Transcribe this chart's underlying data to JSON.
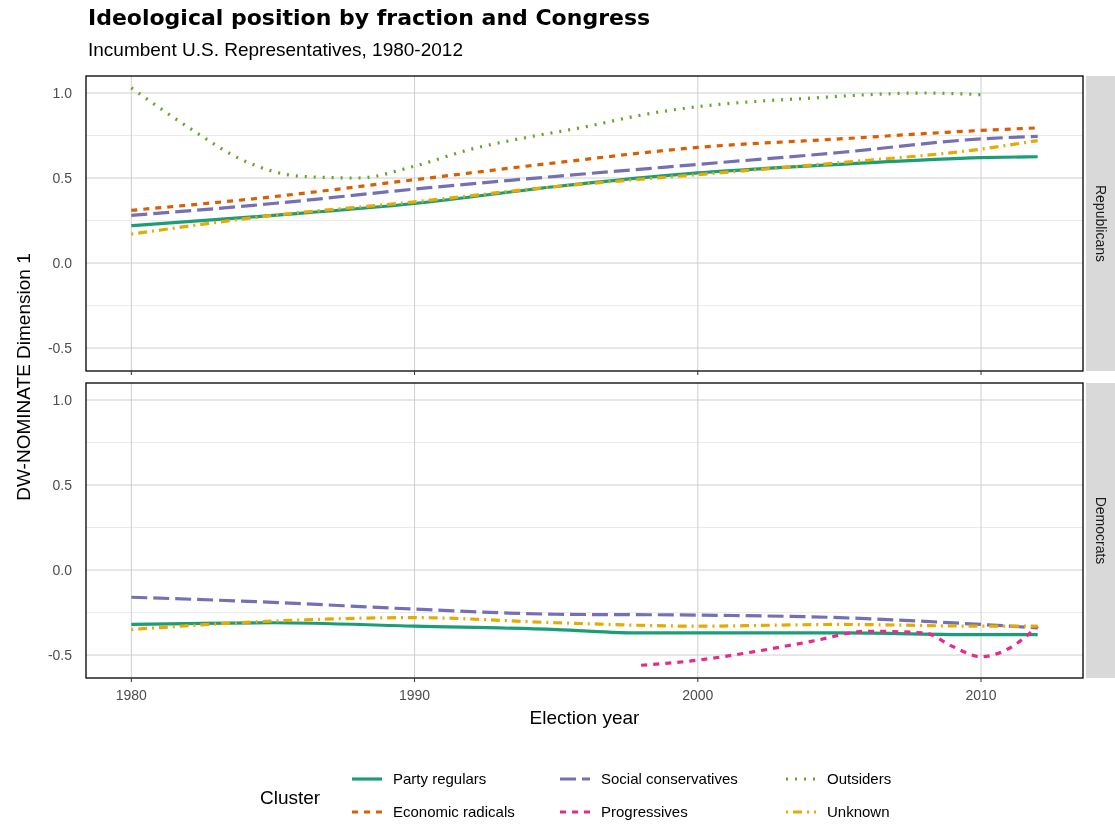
{
  "chart_data": [
    {
      "type": "line",
      "title": "Ideological position by fraction and Congress",
      "subtitle": "Incumbent U.S. Representatives, 1980-2012",
      "ylabel": "DW-NOMINATE Dimension 1",
      "annotations": [
        "Republicans"
      ],
      "legend": "bottom",
      "legend_title": "Cluster",
      "grid": true,
      "tick_labels": "y",
      "xlim": [
        1978.4,
        2013.6
      ],
      "xticks": [
        1980,
        1990,
        2000,
        2010
      ],
      "ylim": [
        -0.635,
        1.1
      ],
      "yticks": [
        {
          "value": -0.5,
          "label": "-0.5"
        },
        {
          "value": -0.25,
          "label": null
        },
        {
          "value": 0,
          "label": "0.0"
        },
        {
          "value": 0.25,
          "label": null
        },
        {
          "value": 0.5,
          "label": "0.5"
        },
        {
          "value": 0.75,
          "label": null
        },
        {
          "value": 1,
          "label": "1.0"
        }
      ],
      "series": [
        {
          "name": "Party regulars",
          "color": "#1b9e77",
          "line_style": "solid",
          "x": [
            1980,
            1985,
            1990,
            1995,
            2000,
            2005,
            2010,
            2012
          ],
          "values": [
            0.22,
            0.28,
            0.35,
            0.45,
            0.53,
            0.58,
            0.62,
            0.625
          ]
        },
        {
          "name": "Economic radicals",
          "color": "#d95f02",
          "line_style": "dashed",
          "x": [
            1980,
            1985,
            1990,
            1995,
            2000,
            2005,
            2010,
            2012
          ],
          "values": [
            0.31,
            0.39,
            0.49,
            0.59,
            0.68,
            0.73,
            0.78,
            0.795
          ]
        },
        {
          "name": "Social conservatives",
          "color": "#7570b3",
          "line_style": "longdash",
          "x": [
            1980,
            1985,
            1990,
            1995,
            2000,
            2005,
            2010,
            2012
          ],
          "values": [
            0.28,
            0.35,
            0.435,
            0.51,
            0.58,
            0.65,
            0.73,
            0.745
          ]
        },
        {
          "name": "Outsiders",
          "color": "#66a61e",
          "line_style": "dotted",
          "x": [
            1980,
            1982,
            1984,
            1986,
            1988,
            1990,
            1992,
            1994,
            1996,
            1998,
            2000,
            2002,
            2004,
            2006,
            2008,
            2010
          ],
          "values": [
            1.03,
            0.8,
            0.6,
            0.51,
            0.5,
            0.57,
            0.67,
            0.74,
            0.8,
            0.87,
            0.92,
            0.95,
            0.97,
            0.99,
            1.0,
            0.99
          ]
        },
        {
          "name": "Unknown",
          "color": "#e6ab02",
          "line_style": "dotdash",
          "x": [
            1980,
            1985,
            1990,
            1995,
            2000,
            2005,
            2010,
            2012
          ],
          "values": [
            0.17,
            0.28,
            0.36,
            0.45,
            0.52,
            0.59,
            0.67,
            0.72
          ]
        }
      ]
    },
    {
      "type": "line",
      "xlabel": "Election year",
      "annotations": [
        "Democrats"
      ],
      "grid": true,
      "xlim": [
        1978.4,
        2013.6
      ],
      "xticks": [
        1980,
        1990,
        2000,
        2010
      ],
      "ylim": [
        -0.635,
        1.1
      ],
      "yticks": [
        {
          "value": -0.5,
          "label": "-0.5"
        },
        {
          "value": -0.25,
          "label": null
        },
        {
          "value": 0,
          "label": "0.0"
        },
        {
          "value": 0.25,
          "label": null
        },
        {
          "value": 0.5,
          "label": "0.5"
        },
        {
          "value": 0.75,
          "label": null
        },
        {
          "value": 1,
          "label": "1.0"
        }
      ],
      "series": [
        {
          "name": "Party regulars",
          "color": "#1b9e77",
          "line_style": "solid",
          "x": [
            1980,
            1985,
            1990,
            1995,
            1998,
            2000,
            2005,
            2010,
            2012
          ],
          "values": [
            -0.32,
            -0.31,
            -0.33,
            -0.35,
            -0.37,
            -0.37,
            -0.37,
            -0.38,
            -0.38
          ]
        },
        {
          "name": "Social conservatives",
          "color": "#7570b3",
          "line_style": "longdash",
          "x": [
            1980,
            1985,
            1990,
            1995,
            2000,
            2005,
            2010,
            2012
          ],
          "values": [
            -0.16,
            -0.19,
            -0.23,
            -0.26,
            -0.265,
            -0.28,
            -0.32,
            -0.34
          ]
        },
        {
          "name": "Progressives",
          "color": "#e7298a",
          "line_style": "dashed",
          "x": [
            1998,
            2000,
            2002,
            2004,
            2006,
            2008,
            2009,
            2010,
            2011,
            2012
          ],
          "values": [
            -0.56,
            -0.53,
            -0.48,
            -0.42,
            -0.36,
            -0.37,
            -0.45,
            -0.51,
            -0.46,
            -0.33
          ]
        },
        {
          "name": "Unknown",
          "color": "#e6ab02",
          "line_style": "dotdash",
          "x": [
            1980,
            1985,
            1990,
            1995,
            2000,
            2005,
            2010,
            2012
          ],
          "values": [
            -0.35,
            -0.3,
            -0.28,
            -0.31,
            -0.33,
            -0.32,
            -0.33,
            -0.33
          ]
        }
      ]
    }
  ]
}
